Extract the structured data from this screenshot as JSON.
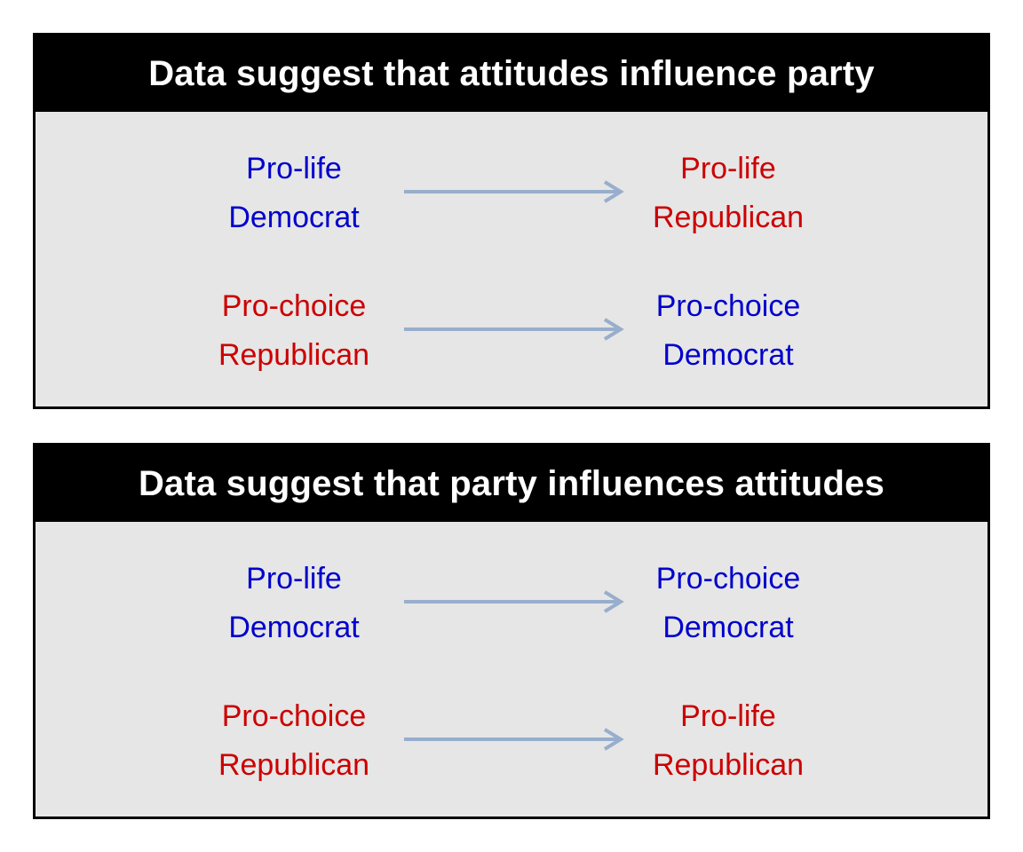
{
  "colors": {
    "democrat": "#0000cc",
    "republican": "#cc0000",
    "arrow": "#98aecc",
    "header_bg": "#000000",
    "header_text": "#ffffff",
    "panel_bg": "#e6e6e6"
  },
  "panels": [
    {
      "title": "Data suggest that attitudes influence party",
      "rows": [
        {
          "from": {
            "line1": "Pro-life",
            "line2": "Democrat",
            "party": "democrat"
          },
          "to": {
            "line1": "Pro-life",
            "line2": "Republican",
            "party": "republican"
          }
        },
        {
          "from": {
            "line1": "Pro-choice",
            "line2": "Republican",
            "party": "republican"
          },
          "to": {
            "line1": "Pro-choice",
            "line2": "Democrat",
            "party": "democrat"
          }
        }
      ]
    },
    {
      "title": "Data suggest that party influences attitudes",
      "rows": [
        {
          "from": {
            "line1": "Pro-life",
            "line2": "Democrat",
            "party": "democrat"
          },
          "to": {
            "line1": "Pro-choice",
            "line2": "Democrat",
            "party": "democrat"
          }
        },
        {
          "from": {
            "line1": "Pro-choice",
            "line2": "Republican",
            "party": "republican"
          },
          "to": {
            "line1": "Pro-life",
            "line2": "Republican",
            "party": "republican"
          }
        }
      ]
    }
  ]
}
